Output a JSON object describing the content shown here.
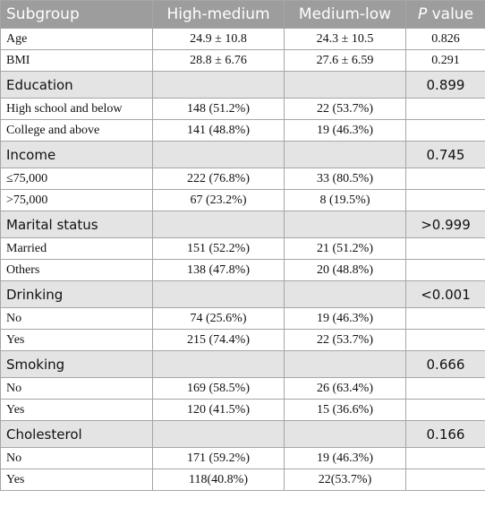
{
  "table": {
    "header": [
      "Subgroup",
      "High-medium",
      "Medium-low"
    ],
    "p_header": {
      "symbol": "P",
      "text": "value"
    },
    "rows": [
      {
        "label": "Age",
        "high": "24.9 ± 10.8",
        "low": "24.3 ± 10.5",
        "p": "0.826"
      },
      {
        "label": "BMI",
        "high": "28.8 ± 6.76",
        "low": "27.6 ± 6.59",
        "p": "0.291"
      },
      {
        "label": "Education",
        "p": "0.899",
        "section": true
      },
      {
        "label": "High school and below",
        "high": "148 (51.2%)",
        "low": "22 (53.7%)"
      },
      {
        "label": "College and above",
        "high": "141 (48.8%)",
        "low": "19 (46.3%)"
      },
      {
        "label": "Income",
        "p": "0.745",
        "section": true
      },
      {
        "label": "≤75,000",
        "high": "222 (76.8%)",
        "low": "33 (80.5%)"
      },
      {
        "label": ">75,000",
        "high": "67 (23.2%)",
        "low": "8 (19.5%)"
      },
      {
        "label": "Marital status",
        "p": ">0.999",
        "section": true
      },
      {
        "label": "Married",
        "high": "151 (52.2%)",
        "low": "21 (51.2%)"
      },
      {
        "label": "Others",
        "high": "138 (47.8%)",
        "low": "20 (48.8%)"
      },
      {
        "label": "Drinking",
        "p": "<0.001",
        "section": true
      },
      {
        "label": "No",
        "high": "74 (25.6%)",
        "low": "19 (46.3%)"
      },
      {
        "label": "Yes",
        "high": "215 (74.4%)",
        "low": "22 (53.7%)"
      },
      {
        "label": "Smoking",
        "p": "0.666",
        "section": true
      },
      {
        "label": "No",
        "high": "169 (58.5%)",
        "low": "26 (63.4%)"
      },
      {
        "label": "Yes",
        "high": "120 (41.5%)",
        "low": "15 (36.6%)"
      },
      {
        "label": "Cholesterol",
        "p": "0.166",
        "section": true
      },
      {
        "label": "No",
        "high": "171 (59.2%)",
        "low": "19 (46.3%)"
      },
      {
        "label": "Yes",
        "high": "118(40.8%)",
        "low": "22(53.7%)"
      }
    ]
  }
}
